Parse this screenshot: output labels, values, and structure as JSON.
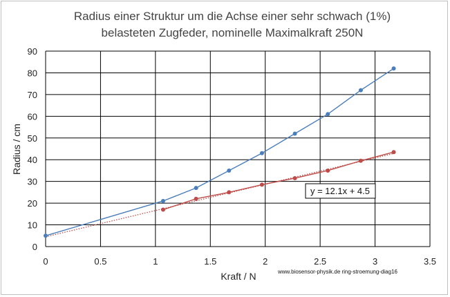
{
  "chart_data": {
    "type": "scatter",
    "title_lines": [
      "Radius einer Struktur um die Achse einer sehr schwach (1%)",
      "belasteten Zugfeder, nominelle  Maximalkraft 250N"
    ],
    "xlabel": "Kraft / N",
    "ylabel": "Radius / cm",
    "xlim": [
      0,
      3.5
    ],
    "ylim": [
      0,
      90
    ],
    "xticks": [
      "0",
      "0.5",
      "1",
      "1.5",
      "2",
      "2.5",
      "3",
      "3.5"
    ],
    "yticks": [
      "0",
      "10",
      "20",
      "30",
      "40",
      "50",
      "60",
      "70",
      "80",
      "90"
    ],
    "grid": true,
    "series": [
      {
        "color": "#4a7ebb",
        "style": "line-with-markers",
        "points": [
          [
            0,
            5
          ],
          [
            1.07,
            21
          ],
          [
            1.37,
            27
          ],
          [
            1.67,
            35
          ],
          [
            1.97,
            43
          ],
          [
            2.27,
            52
          ],
          [
            2.57,
            61
          ],
          [
            2.87,
            72
          ],
          [
            3.17,
            82
          ]
        ]
      },
      {
        "color": "#be4b48",
        "style": "line-with-markers",
        "points": [
          [
            1.07,
            17
          ],
          [
            1.37,
            22
          ],
          [
            1.67,
            25
          ],
          [
            1.97,
            28.5
          ],
          [
            2.27,
            31.5
          ],
          [
            2.57,
            35
          ],
          [
            2.87,
            39.5
          ],
          [
            3.17,
            43.5
          ]
        ]
      }
    ],
    "trendline": {
      "color": "#be4b48",
      "style": "dotted",
      "slope": 12.1,
      "intercept": 4.5,
      "x_range": [
        0,
        3.17
      ],
      "label": "y = 12.1x + 4.5"
    },
    "annotation": "www.biosensor-physik.de ring-stroemung-diag16"
  }
}
